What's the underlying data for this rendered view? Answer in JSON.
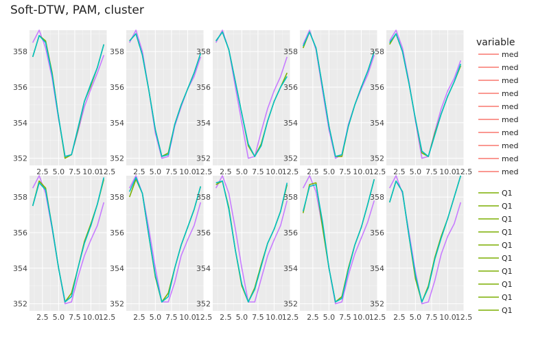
{
  "page": {
    "title": "Soft-DTW, PAM, cluster"
  },
  "legend": {
    "title": "variable",
    "groups": [
      {
        "color": "#F8766D",
        "labels": [
          "med",
          "med",
          "med",
          "med",
          "med",
          "med",
          "med",
          "med",
          "med",
          "med"
        ]
      },
      {
        "color": "#7CAE00",
        "labels": [
          "Q1",
          "Q1",
          "Q1",
          "Q1",
          "Q1",
          "Q1",
          "Q1",
          "Q1",
          "Q1",
          "Q1"
        ]
      }
    ]
  },
  "colors": {
    "panel_bg": "#EBEBEB",
    "grid": "#FFFFFF",
    "series_purple": "#C77CFF",
    "series_teal": "#00BFC4",
    "series_green": "#7CAE00"
  },
  "chart_data": {
    "type": "line",
    "title": "Soft-DTW, PAM, cluster",
    "xlim": [
      0.5,
      12.5
    ],
    "ylim": [
      351.6,
      359.2
    ],
    "x_ticks": [
      2.5,
      5.0,
      7.5,
      10.0,
      12.5
    ],
    "x_tick_labels": [
      "2.5",
      "5.0",
      "7.5",
      "10.0",
      "12.5"
    ],
    "y_ticks": [
      352,
      354,
      356,
      358
    ],
    "y_tick_labels": [
      "352",
      "354",
      "356",
      "358"
    ],
    "layout": {
      "rows": 2,
      "cols": 5
    },
    "x": [
      1,
      2,
      3,
      4,
      5,
      6,
      7,
      8,
      9,
      10,
      11,
      12
    ],
    "legend_placement": "right",
    "grid": true,
    "panels": [
      {
        "series": [
          {
            "color": "#C77CFF",
            "values": [
              358.5,
              359.2,
              358.2,
              356.5,
              354.2,
              352.1,
              352.2,
              353.5,
              354.9,
              355.9,
              356.8,
              357.8
            ]
          },
          {
            "color": "#7CAE00",
            "values": [
              357.7,
              358.9,
              358.6,
              356.8,
              354.3,
              352.0,
              352.2,
              353.6,
              355.2,
              356.1,
              357.1,
              358.4
            ]
          },
          {
            "color": "#00BFC4",
            "values": [
              357.7,
              358.9,
              358.5,
              356.7,
              354.3,
              352.1,
              352.2,
              353.7,
              355.2,
              356.2,
              357.1,
              358.4
            ]
          }
        ]
      },
      {
        "series": [
          {
            "color": "#C77CFF",
            "values": [
              358.5,
              359.2,
              358.0,
              355.8,
              353.4,
              352.0,
              352.1,
              353.8,
              354.9,
              355.9,
              356.6,
              357.7
            ]
          },
          {
            "color": "#7CAE00",
            "values": [
              358.6,
              359.0,
              357.8,
              355.8,
              353.6,
              352.1,
              352.3,
              353.9,
              355.0,
              355.9,
              356.8,
              357.9
            ]
          },
          {
            "color": "#00BFC4",
            "values": [
              358.6,
              359.0,
              357.8,
              355.8,
              353.6,
              352.1,
              352.2,
              353.9,
              355.0,
              355.9,
              356.8,
              357.9
            ]
          }
        ]
      },
      {
        "series": [
          {
            "color": "#C77CFF",
            "values": [
              358.5,
              359.2,
              358.1,
              356.0,
              354.0,
              352.0,
              352.1,
              353.5,
              354.8,
              355.8,
              356.6,
              357.7
            ]
          },
          {
            "color": "#7CAE00",
            "values": [
              358.6,
              359.1,
              358.1,
              356.3,
              354.5,
              352.7,
              352.1,
              352.8,
              354.1,
              355.2,
              356.0,
              356.8
            ]
          },
          {
            "color": "#00BFC4",
            "values": [
              358.6,
              359.1,
              358.1,
              356.3,
              354.5,
              352.8,
              352.1,
              352.7,
              354.1,
              355.2,
              356.0,
              356.6
            ]
          }
        ]
      },
      {
        "series": [
          {
            "color": "#C77CFF",
            "values": [
              358.4,
              359.2,
              358.1,
              355.8,
              353.6,
              352.0,
              352.2,
              353.9,
              355.0,
              355.9,
              356.7,
              357.8
            ]
          },
          {
            "color": "#7CAE00",
            "values": [
              358.2,
              359.1,
              358.2,
              356.0,
              353.8,
              352.1,
              352.1,
              353.8,
              355.0,
              356.0,
              356.9,
              358.0
            ]
          },
          {
            "color": "#00BFC4",
            "values": [
              358.3,
              359.1,
              358.2,
              356.0,
              353.8,
              352.1,
              352.2,
              353.8,
              355.0,
              356.0,
              356.9,
              358.0
            ]
          }
        ]
      },
      {
        "series": [
          {
            "color": "#C77CFF",
            "values": [
              358.6,
              359.2,
              358.2,
              356.3,
              354.1,
              352.0,
              352.1,
              353.5,
              354.8,
              355.8,
              356.5,
              357.5
            ]
          },
          {
            "color": "#7CAE00",
            "values": [
              358.4,
              359.0,
              358.0,
              356.2,
              354.2,
              352.3,
              352.1,
              353.4,
              354.5,
              355.5,
              356.3,
              357.2
            ]
          },
          {
            "color": "#00BFC4",
            "values": [
              358.5,
              359.0,
              358.0,
              356.2,
              354.2,
              352.4,
              352.1,
              353.3,
              354.5,
              355.5,
              356.3,
              357.3
            ]
          }
        ]
      },
      {
        "series": [
          {
            "color": "#C77CFF",
            "values": [
              358.5,
              359.2,
              358.2,
              356.2,
              354.0,
              352.0,
              352.1,
              353.5,
              354.7,
              355.6,
              356.4,
              357.7
            ]
          },
          {
            "color": "#7CAE00",
            "values": [
              357.5,
              358.9,
              358.5,
              356.3,
              354.0,
              352.1,
              352.6,
              354.0,
              355.5,
              356.5,
              357.6,
              359.0
            ]
          },
          {
            "color": "#00BFC4",
            "values": [
              357.5,
              358.8,
              358.4,
              356.3,
              354.0,
              352.1,
              352.4,
              354.0,
              355.4,
              356.4,
              357.6,
              359.1
            ]
          }
        ]
      },
      {
        "series": [
          {
            "color": "#C77CFF",
            "values": [
              358.5,
              359.2,
              358.2,
              356.2,
              354.0,
              352.1,
              352.1,
              353.2,
              354.7,
              355.6,
              356.4,
              357.7
            ]
          },
          {
            "color": "#7CAE00",
            "values": [
              358.0,
              359.0,
              358.2,
              355.8,
              353.5,
              352.1,
              352.6,
              354.0,
              355.3,
              356.3,
              357.3,
              358.6
            ]
          },
          {
            "color": "#00BFC4",
            "values": [
              358.3,
              359.1,
              358.2,
              355.8,
              353.6,
              352.1,
              352.4,
              354.0,
              355.3,
              356.3,
              357.3,
              358.6
            ]
          }
        ]
      },
      {
        "series": [
          {
            "color": "#C77CFF",
            "values": [
              358.5,
              359.2,
              358.2,
              356.2,
              354.0,
              352.1,
              352.1,
              353.4,
              354.7,
              355.6,
              356.4,
              357.8
            ]
          },
          {
            "color": "#7CAE00",
            "values": [
              358.7,
              358.9,
              357.4,
              355.0,
              353.0,
              352.1,
              352.9,
              354.2,
              355.4,
              356.2,
              357.2,
              358.7
            ]
          },
          {
            "color": "#00BFC4",
            "values": [
              358.8,
              358.9,
              357.3,
              355.0,
              353.1,
              352.1,
              352.8,
              354.1,
              355.4,
              356.2,
              357.2,
              358.8
            ]
          }
        ]
      },
      {
        "series": [
          {
            "color": "#C77CFF",
            "values": [
              358.5,
              359.2,
              358.3,
              356.3,
              354.0,
              352.0,
              352.1,
              353.6,
              354.8,
              355.7,
              356.6,
              357.8
            ]
          },
          {
            "color": "#7CAE00",
            "values": [
              357.1,
              358.7,
              358.8,
              356.3,
              354.0,
              352.1,
              352.4,
              354.0,
              355.3,
              356.3,
              357.6,
              359.0
            ]
          },
          {
            "color": "#00BFC4",
            "values": [
              357.2,
              358.6,
              358.7,
              356.6,
              354.0,
              352.1,
              352.3,
              353.9,
              355.3,
              356.3,
              357.6,
              359.0
            ]
          }
        ]
      },
      {
        "series": [
          {
            "color": "#C77CFF",
            "values": [
              358.5,
              359.2,
              358.2,
              356.0,
              353.8,
              352.0,
              352.1,
              353.3,
              354.8,
              355.8,
              356.5,
              357.7
            ]
          },
          {
            "color": "#7CAE00",
            "values": [
              357.7,
              358.9,
              358.3,
              355.8,
              353.4,
              352.1,
              353.0,
              354.6,
              355.8,
              356.8,
              358.0,
              359.2
            ]
          },
          {
            "color": "#00BFC4",
            "values": [
              357.7,
              358.9,
              358.3,
              355.8,
              353.6,
              352.1,
              352.9,
              354.5,
              355.7,
              356.8,
              358.0,
              359.2
            ]
          }
        ]
      }
    ]
  }
}
